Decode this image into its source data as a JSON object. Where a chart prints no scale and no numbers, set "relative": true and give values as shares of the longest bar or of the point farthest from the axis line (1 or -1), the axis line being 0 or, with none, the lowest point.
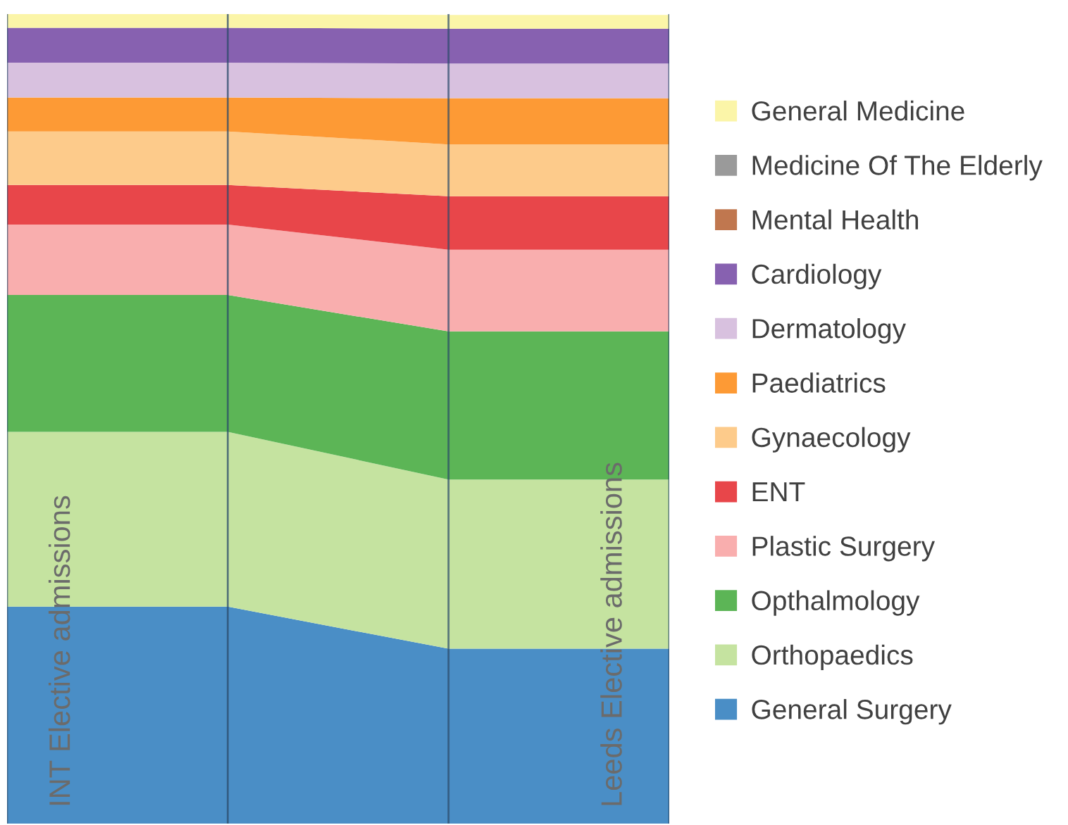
{
  "chart_data": {
    "type": "area",
    "stacked": true,
    "relative": true,
    "grid": "x",
    "legend": "right",
    "categories": [
      null,
      null,
      null,
      null
    ],
    "series": [
      {
        "name": "General Surgery",
        "color": "#4a8ec6",
        "values": [
          0.268,
          0.268,
          0.216,
          0.216
        ]
      },
      {
        "name": "Orthopaedics",
        "color": "#c5e3a0",
        "values": [
          0.216,
          0.216,
          0.209,
          0.209
        ]
      },
      {
        "name": "Opthalmology",
        "color": "#5cb556",
        "values": [
          0.169,
          0.169,
          0.183,
          0.183
        ]
      },
      {
        "name": "Plastic Surgery",
        "color": "#f9aeae",
        "values": [
          0.087,
          0.087,
          0.101,
          0.101
        ]
      },
      {
        "name": "ENT",
        "color": "#e8464a",
        "values": [
          0.049,
          0.049,
          0.066,
          0.066
        ]
      },
      {
        "name": "Gynaecology",
        "color": "#fdcb8b",
        "values": [
          0.066,
          0.066,
          0.064,
          0.064
        ]
      },
      {
        "name": "Paediatrics",
        "color": "#fd9a35",
        "values": [
          0.042,
          0.042,
          0.057,
          0.057
        ]
      },
      {
        "name": "Dermatology",
        "color": "#d8c1df",
        "values": [
          0.043,
          0.043,
          0.043,
          0.043
        ]
      },
      {
        "name": "Cardiology",
        "color": "#8761b0",
        "values": [
          0.043,
          0.043,
          0.043,
          0.043
        ]
      },
      {
        "name": "Mental Health",
        "color": "#c0774f",
        "values": [
          null,
          null,
          null,
          null
        ]
      },
      {
        "name": "Medicine Of The Elderly",
        "color": "#9a9a9a",
        "values": [
          null,
          null,
          null,
          null
        ]
      },
      {
        "name": "General Medicine",
        "color": "#fbf5a8",
        "values": [
          0.017,
          0.017,
          0.017,
          0.017
        ]
      }
    ],
    "annotations": [
      "INT Elective admissions",
      "Leeds Elective admissions"
    ]
  }
}
